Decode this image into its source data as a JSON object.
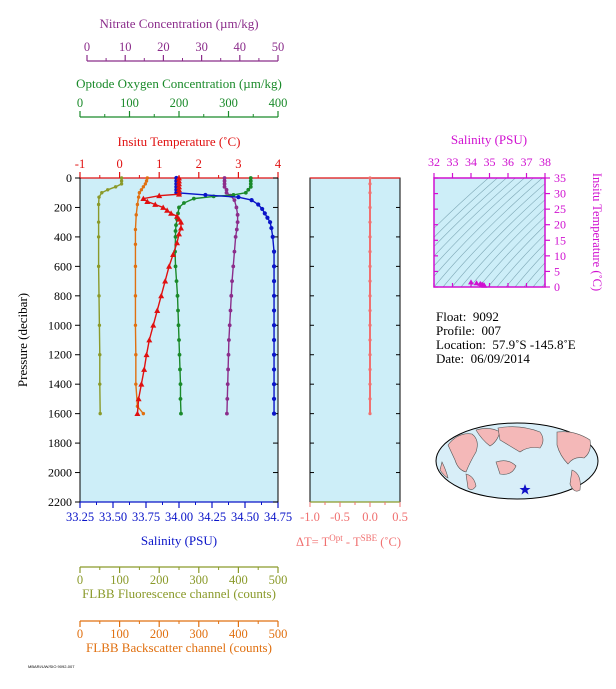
{
  "colors": {
    "nitrate": "#8b2d8b",
    "oxygen": "#1a8a2a",
    "temperature": "#e01010",
    "salinity": "#0a14c8",
    "fluorescence": "#8a9a2a",
    "backscatter": "#e07010",
    "delta_t": "#f07070",
    "ts_axis": "#d010d0",
    "panel_bg": "#cdeef8"
  },
  "axes": {
    "nitrate": {
      "title": "Nitrate Concentration (µm/kg)",
      "ticks": [
        "0",
        "10",
        "20",
        "30",
        "40",
        "50"
      ],
      "range": [
        0,
        50
      ]
    },
    "oxygen": {
      "title": "Optode Oxygen Concentration (µm/kg)",
      "ticks": [
        "0",
        "100",
        "200",
        "300",
        "400"
      ],
      "range": [
        0,
        400
      ]
    },
    "temperature": {
      "title": "Insitu Temperature (˚C)",
      "ticks": [
        "-1",
        "0",
        "1",
        "2",
        "3",
        "4"
      ],
      "range": [
        -1,
        4
      ]
    },
    "salinity": {
      "title": "Salinity (PSU)",
      "ticks": [
        "33.25",
        "33.50",
        "33.75",
        "34.00",
        "34.25",
        "34.50",
        "34.75"
      ],
      "range": [
        33.25,
        34.75
      ]
    },
    "pressure": {
      "title": "Pressure (decibar)",
      "ticks": [
        "0",
        "200",
        "400",
        "600",
        "800",
        "1000",
        "1200",
        "1400",
        "1600",
        "1800",
        "2000",
        "2200"
      ],
      "range": [
        0,
        2200
      ]
    },
    "fluorescence": {
      "title": "FLBB Fluorescence channel (counts)",
      "ticks": [
        "0",
        "100",
        "200",
        "300",
        "400",
        "500"
      ],
      "range": [
        0,
        500
      ]
    },
    "backscatter": {
      "title": "FLBB Backscatter channel (counts)",
      "ticks": [
        "0",
        "100",
        "200",
        "300",
        "400",
        "500"
      ],
      "range": [
        0,
        500
      ]
    },
    "delta_t": {
      "title_prefix": "ΔT= T",
      "title_sup1": "Opt",
      "title_mid": " - T",
      "title_sup2": "SBE",
      "title_suffix": " (˚C)",
      "ticks": [
        "-1.0",
        "-0.5",
        "0.0",
        "0.5"
      ],
      "range": [
        -1.0,
        0.5
      ]
    },
    "ts_salinity": {
      "title": "Salinity (PSU)",
      "ticks": [
        "32",
        "33",
        "34",
        "35",
        "36",
        "37",
        "38"
      ],
      "range": [
        32,
        38
      ]
    },
    "ts_temperature": {
      "title": "Insitu Temperature (˚C)",
      "ticks": [
        "0",
        "5",
        "10",
        "15",
        "20",
        "25",
        "30",
        "35"
      ],
      "range": [
        0,
        35
      ]
    }
  },
  "info": {
    "float_label": "Float:",
    "float_value": "9092",
    "profile_label": "Profile:",
    "profile_value": "007",
    "location_label": "Location:",
    "location_value": "57.9˚S  -145.8˚E",
    "date_label": "Date:",
    "date_value": "06/09/2014"
  },
  "footer": "MBARI/UW/SIO 9092-007",
  "chart_data": [
    {
      "type": "line",
      "name": "Insitu Temperature",
      "x_units": "˚C",
      "points": [
        [
          1.5,
          0
        ],
        [
          1.5,
          20
        ],
        [
          1.5,
          40
        ],
        [
          1.5,
          60
        ],
        [
          1.5,
          80
        ],
        [
          1.5,
          100
        ],
        [
          1.5,
          110
        ],
        [
          1.0,
          120
        ],
        [
          0.6,
          140
        ],
        [
          0.7,
          160
        ],
        [
          0.9,
          180
        ],
        [
          1.1,
          200
        ],
        [
          1.2,
          220
        ],
        [
          1.3,
          240
        ],
        [
          1.45,
          260
        ],
        [
          1.5,
          280
        ],
        [
          1.55,
          300
        ],
        [
          1.55,
          340
        ],
        [
          1.5,
          380
        ],
        [
          1.45,
          440
        ],
        [
          1.35,
          520
        ],
        [
          1.25,
          600
        ],
        [
          1.15,
          700
        ],
        [
          1.05,
          800
        ],
        [
          0.95,
          900
        ],
        [
          0.85,
          1000
        ],
        [
          0.75,
          1100
        ],
        [
          0.68,
          1200
        ],
        [
          0.62,
          1300
        ],
        [
          0.55,
          1400
        ],
        [
          0.48,
          1500
        ],
        [
          0.45,
          1600
        ]
      ]
    },
    {
      "type": "line",
      "name": "Salinity",
      "x_units": "PSU",
      "points": [
        [
          33.98,
          0
        ],
        [
          33.98,
          20
        ],
        [
          33.98,
          40
        ],
        [
          33.98,
          60
        ],
        [
          33.98,
          80
        ],
        [
          33.98,
          100
        ],
        [
          34.2,
          115
        ],
        [
          34.45,
          130
        ],
        [
          34.55,
          150
        ],
        [
          34.6,
          180
        ],
        [
          34.63,
          210
        ],
        [
          34.65,
          240
        ],
        [
          34.67,
          270
        ],
        [
          34.69,
          300
        ],
        [
          34.7,
          340
        ],
        [
          34.71,
          400
        ],
        [
          34.72,
          500
        ],
        [
          34.72,
          600
        ],
        [
          34.72,
          700
        ],
        [
          34.72,
          800
        ],
        [
          34.72,
          900
        ],
        [
          34.72,
          1000
        ],
        [
          34.72,
          1100
        ],
        [
          34.72,
          1200
        ],
        [
          34.72,
          1300
        ],
        [
          34.72,
          1400
        ],
        [
          34.72,
          1500
        ],
        [
          34.72,
          1600
        ]
      ]
    },
    {
      "type": "line",
      "name": "Optode Oxygen Concentration",
      "x_units": "µm/kg",
      "points": [
        [
          345,
          0
        ],
        [
          345,
          20
        ],
        [
          345,
          40
        ],
        [
          345,
          60
        ],
        [
          340,
          80
        ],
        [
          335,
          100
        ],
        [
          310,
          115
        ],
        [
          270,
          125
        ],
        [
          230,
          140
        ],
        [
          210,
          170
        ],
        [
          200,
          200
        ],
        [
          198,
          240
        ],
        [
          196,
          280
        ],
        [
          194,
          320
        ],
        [
          193,
          360
        ],
        [
          193,
          400
        ],
        [
          192,
          500
        ],
        [
          193,
          600
        ],
        [
          195,
          700
        ],
        [
          197,
          800
        ],
        [
          198,
          900
        ],
        [
          199,
          1000
        ],
        [
          200,
          1100
        ],
        [
          201,
          1200
        ],
        [
          202,
          1300
        ],
        [
          203,
          1400
        ],
        [
          203,
          1500
        ],
        [
          204,
          1600
        ]
      ]
    },
    {
      "type": "line",
      "name": "Nitrate Concentration",
      "x_units": "µm/kg",
      "points": [
        [
          36.5,
          0
        ],
        [
          36.5,
          20
        ],
        [
          36.5,
          40
        ],
        [
          36.5,
          60
        ],
        [
          37,
          80
        ],
        [
          37,
          100
        ],
        [
          38,
          120
        ],
        [
          39,
          150
        ],
        [
          39.5,
          200
        ],
        [
          39.8,
          250
        ],
        [
          39.8,
          300
        ],
        [
          39.6,
          350
        ],
        [
          39.3,
          400
        ],
        [
          39,
          500
        ],
        [
          38.7,
          600
        ],
        [
          38.4,
          700
        ],
        [
          38.2,
          800
        ],
        [
          38,
          900
        ],
        [
          37.8,
          1000
        ],
        [
          37.6,
          1100
        ],
        [
          37.5,
          1200
        ],
        [
          37.4,
          1300
        ],
        [
          37.3,
          1400
        ],
        [
          37.2,
          1500
        ],
        [
          37.1,
          1600
        ]
      ]
    },
    {
      "type": "line",
      "name": "FLBB Fluorescence channel",
      "x_units": "counts",
      "points": [
        [
          105,
          0
        ],
        [
          105,
          20
        ],
        [
          105,
          40
        ],
        [
          90,
          60
        ],
        [
          70,
          80
        ],
        [
          55,
          100
        ],
        [
          48,
          130
        ],
        [
          47,
          180
        ],
        [
          47,
          300
        ],
        [
          47,
          400
        ],
        [
          47,
          600
        ],
        [
          48,
          800
        ],
        [
          49,
          1000
        ],
        [
          50,
          1200
        ],
        [
          50,
          1400
        ],
        [
          51,
          1600
        ]
      ]
    },
    {
      "type": "line",
      "name": "FLBB Backscatter channel",
      "x_units": "counts",
      "points": [
        [
          170,
          0
        ],
        [
          168,
          20
        ],
        [
          165,
          40
        ],
        [
          160,
          60
        ],
        [
          155,
          80
        ],
        [
          150,
          100
        ],
        [
          148,
          130
        ],
        [
          145,
          180
        ],
        [
          142,
          250
        ],
        [
          140,
          350
        ],
        [
          140,
          450
        ],
        [
          140,
          600
        ],
        [
          140,
          800
        ],
        [
          140,
          1000
        ],
        [
          141,
          1200
        ],
        [
          141,
          1400
        ],
        [
          145,
          1550
        ],
        [
          160,
          1600
        ]
      ]
    },
    {
      "type": "line",
      "name": "ΔT",
      "x_units": "˚C",
      "points": [
        [
          0.0,
          0
        ],
        [
          0.0,
          40
        ],
        [
          0.0,
          100
        ],
        [
          0.0,
          200
        ],
        [
          0.0,
          300
        ],
        [
          0.0,
          400
        ],
        [
          0.0,
          500
        ],
        [
          0.0,
          600
        ],
        [
          0.0,
          700
        ],
        [
          0.0,
          800
        ],
        [
          0.0,
          900
        ],
        [
          0.0,
          1000
        ],
        [
          0.0,
          1100
        ],
        [
          0.0,
          1200
        ],
        [
          0.0,
          1300
        ],
        [
          0.0,
          1400
        ],
        [
          0.0,
          1500
        ],
        [
          0.0,
          1600
        ]
      ]
    },
    {
      "type": "scatter",
      "name": "T-S diagram",
      "points": [
        [
          34.0,
          1.5
        ],
        [
          34.3,
          1.2
        ],
        [
          34.5,
          1.0
        ],
        [
          34.6,
          0.8
        ],
        [
          34.7,
          0.6
        ],
        [
          34.72,
          0.4
        ]
      ]
    }
  ]
}
